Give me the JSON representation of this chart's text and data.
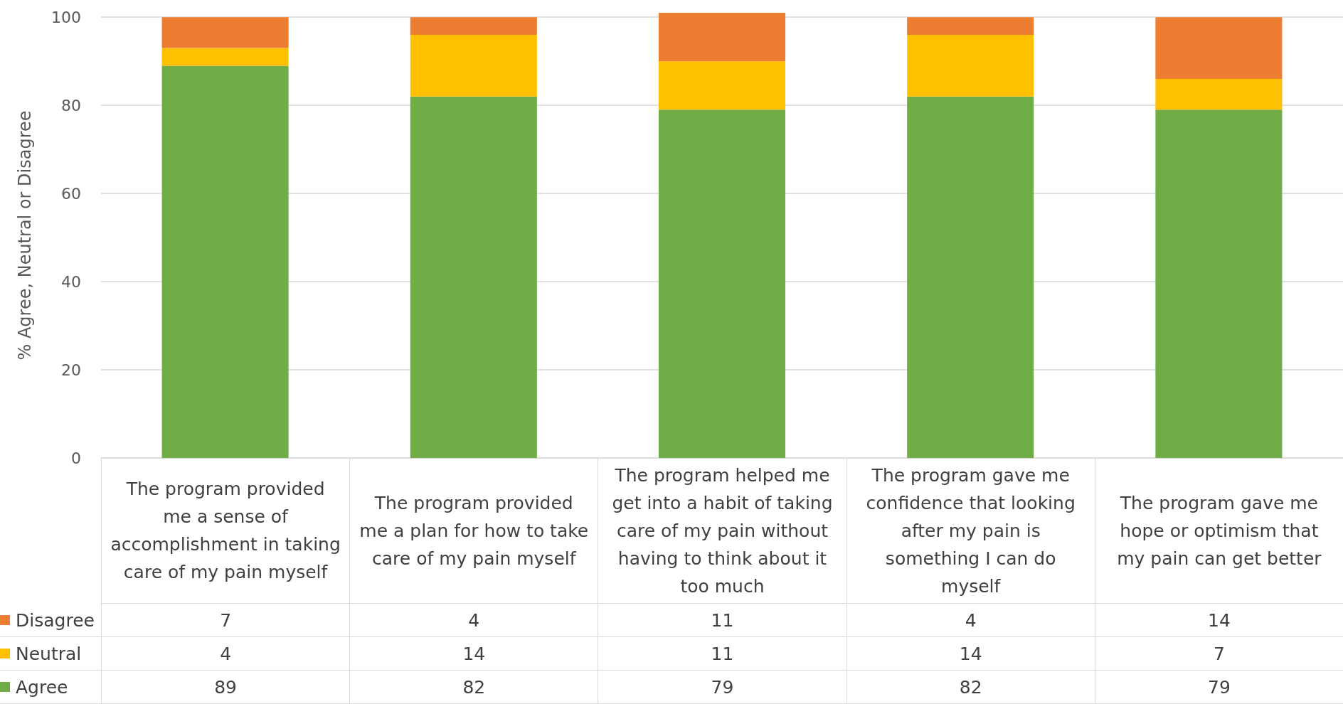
{
  "chart_data": {
    "type": "bar",
    "stacked": true,
    "ylabel": "% Agree, Neutral or Disagree",
    "categories": [
      "The program provided me a sense of accomplishment in taking care of my pain myself",
      "The program provided me a plan for how to take care of my pain myself",
      "The program helped me get into a habit of taking care of my pain without having to think about it too much",
      "The program gave me confidence that looking after my pain is something I can do myself",
      "The program gave me hope or optimism that my pain can get better"
    ],
    "series": [
      {
        "name": "Agree",
        "color": "#70ad47",
        "values": [
          89,
          82,
          79,
          82,
          79
        ]
      },
      {
        "name": "Neutral",
        "color": "#ffc000",
        "values": [
          4,
          14,
          11,
          14,
          7
        ]
      },
      {
        "name": "Disagree",
        "color": "#ed7d31",
        "values": [
          7,
          4,
          11,
          4,
          14
        ]
      }
    ],
    "ylim": [
      0,
      101
    ],
    "yticks": [
      0,
      20,
      40,
      60,
      80,
      100
    ],
    "grid": "y",
    "legend": "bottom",
    "data_labels": true
  }
}
